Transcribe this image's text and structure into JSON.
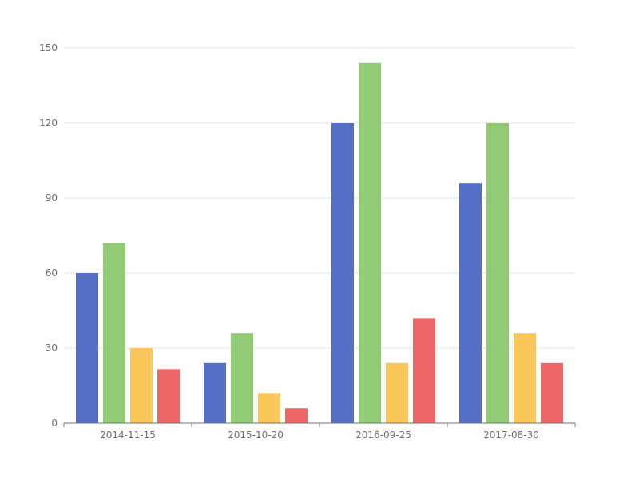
{
  "chart_data": {
    "type": "bar",
    "categories": [
      "2014-11-15",
      "2015-10-20",
      "2016-09-25",
      "2017-08-30"
    ],
    "series": [
      {
        "values": [
          60,
          24,
          120,
          96
        ],
        "color": "#5470c6"
      },
      {
        "values": [
          72,
          36,
          144,
          120
        ],
        "color": "#91cc75"
      },
      {
        "values": [
          30,
          12,
          24,
          36
        ],
        "color": "#fac858"
      },
      {
        "values": [
          21.6,
          6,
          42,
          24
        ],
        "color": "#ee6666"
      }
    ],
    "ylim": [
      0,
      150
    ],
    "yticks": [
      0,
      30,
      60,
      90,
      120,
      150
    ],
    "grid": true,
    "title": "",
    "xlabel": "",
    "ylabel": ""
  }
}
